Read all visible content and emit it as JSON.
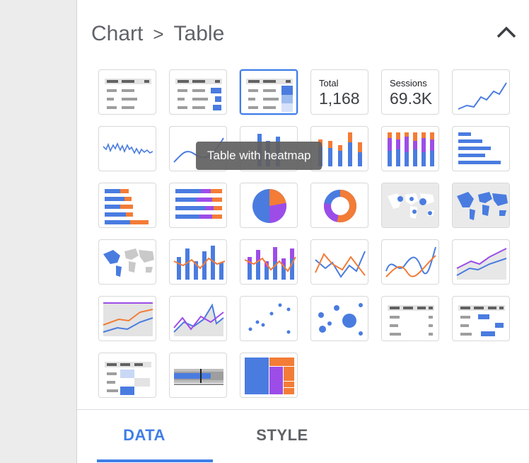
{
  "breadcrumb": {
    "parent": "Chart",
    "separator": ">",
    "current": "Table"
  },
  "tooltip": "Table with heatmap",
  "tabs": [
    {
      "label": "DATA",
      "active": true
    },
    {
      "label": "STYLE",
      "active": false
    }
  ],
  "scorecards": [
    {
      "label": "Total",
      "value": "1,168"
    },
    {
      "label": "Sessions",
      "value": "69.3K"
    }
  ],
  "chart_types": [
    "table",
    "table-with-bars",
    "table-with-heatmap",
    "scorecard",
    "scorecard-compact",
    "time-series",
    "sparkline",
    "smoothed-time-series",
    "column",
    "stacked-column",
    "100-stacked-column",
    "bar",
    "stacked-bar",
    "100-stacked-bar",
    "pie",
    "donut",
    "google-maps-bubble",
    "geo-chart",
    "filled-map",
    "combo",
    "stacked-combo",
    "line",
    "smoothed-line",
    "area",
    "stacked-area",
    "100-stacked-area",
    "scatter",
    "bubble",
    "pivot-table",
    "pivot-table-with-bars",
    "pivot-table-with-heatmap",
    "bullet",
    "treemap"
  ],
  "selected_chart": "table-with-heatmap",
  "colors": {
    "blue": "#4a7ce0",
    "orange": "#f37c36",
    "purple": "#9c4de8",
    "accent": "#3f7ee8",
    "text": "#5f6368"
  }
}
